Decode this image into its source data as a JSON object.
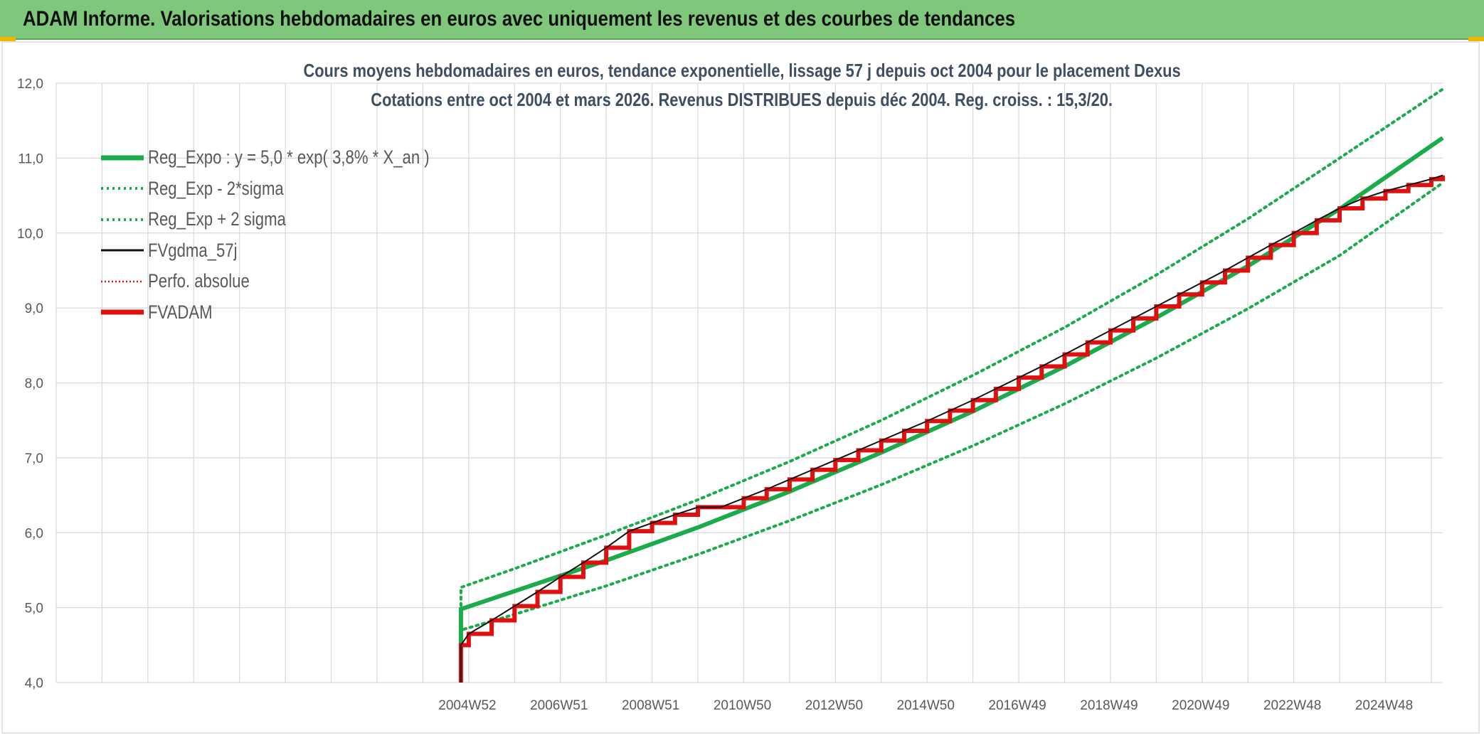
{
  "header": {
    "title": "ADAM Informe. Valorisations hebdomadaires en euros avec uniquement les revenus et des courbes de tendances"
  },
  "colors": {
    "banner": "#7fc77a",
    "trend": "#1aab4b",
    "red": "#e01010",
    "black": "#111111",
    "grid": "#d9d9d9"
  },
  "chart_data": {
    "type": "line",
    "title": "Cours moyens hebdomadaires en euros, tendance exponentielle, lissage 57 j depuis oct 2004 pour le placement Dexus",
    "subtitle": "Cotations entre oct 2004 et mars 2026. Revenus DISTRIBUES depuis déc 2004. Reg. croiss. : 15,3/20.",
    "ylim": [
      4,
      12
    ],
    "y_ticks": [
      "4,0",
      "5,0",
      "6,0",
      "7,0",
      "8,0",
      "9,0",
      "10,0",
      "11,0",
      "12,0"
    ],
    "x_tick_labels": [
      "2004W52",
      "2006W51",
      "2008W51",
      "2010W50",
      "2012W50",
      "2014W50",
      "2016W49",
      "2018W49",
      "2020W49",
      "2022W48",
      "2024W48"
    ],
    "x_range_years": [
      1996.0,
      2026.25
    ],
    "grid": true,
    "legend_position": "top-left",
    "legend": [
      {
        "name": "Reg_Expo : y = 5,0 * exp( 3,8% *  X_an )",
        "color": "#1aab4b",
        "style": "solid-thick"
      },
      {
        "name": "Reg_Exp - 2*sigma",
        "color": "#1aab4b",
        "style": "dotted"
      },
      {
        "name": "Reg_Exp + 2 sigma",
        "color": "#1aab4b",
        "style": "dotted"
      },
      {
        "name": "FVgdma_57j",
        "color": "#111111",
        "style": "solid"
      },
      {
        "name": "Perfo. absolue",
        "color": "#e01010",
        "style": "dotted"
      },
      {
        "name": "FVADAM",
        "color": "#e01010",
        "style": "solid-thick"
      }
    ],
    "series": [
      {
        "name": "Reg_Expo : y = 5,0 * exp( 3,8% *  X_an )",
        "x": [
          2004.83,
          2004.83,
          2006,
          2008,
          2010,
          2012,
          2014,
          2016,
          2018,
          2020,
          2022,
          2024,
          2026.25
        ],
        "y": [
          4.5,
          4.98,
          5.22,
          5.63,
          6.07,
          6.55,
          7.07,
          7.62,
          8.22,
          8.87,
          9.56,
          10.32,
          11.27
        ]
      },
      {
        "name": "Reg_Exp - 2*sigma",
        "x": [
          2004.83,
          2004.83,
          2006,
          2008,
          2010,
          2012,
          2014,
          2016,
          2018,
          2020,
          2022,
          2024,
          2026.25
        ],
        "y": [
          4.4,
          4.7,
          4.91,
          5.29,
          5.71,
          6.16,
          6.64,
          7.16,
          7.72,
          8.33,
          8.99,
          9.7,
          10.67
        ]
      },
      {
        "name": "Reg_Exp + 2 sigma",
        "x": [
          2004.83,
          2004.83,
          2006,
          2008,
          2010,
          2012,
          2014,
          2016,
          2018,
          2020,
          2022,
          2024,
          2026.25
        ],
        "y": [
          4.6,
          5.27,
          5.52,
          5.97,
          6.44,
          6.95,
          7.5,
          8.1,
          8.74,
          9.44,
          10.19,
          11.0,
          11.92
        ]
      },
      {
        "name": "FVADAM",
        "x": [
          2004.83,
          2004.83,
          2005.0,
          2005.5,
          2006.0,
          2006.5,
          2007.0,
          2007.5,
          2008.0,
          2008.5,
          2009.0,
          2009.5,
          2010.0,
          2010.5,
          2011.0,
          2011.5,
          2012.0,
          2012.5,
          2013.0,
          2013.5,
          2014.0,
          2014.5,
          2015.0,
          2015.5,
          2016.0,
          2016.5,
          2017.0,
          2017.5,
          2018.0,
          2018.5,
          2019.0,
          2019.5,
          2020.0,
          2020.5,
          2021.0,
          2021.5,
          2022.0,
          2022.5,
          2023.0,
          2023.5,
          2024.0,
          2024.5,
          2025.0,
          2025.5,
          2026.0,
          2026.25
        ],
        "y": [
          4.0,
          4.5,
          4.65,
          4.83,
          5.02,
          5.21,
          5.41,
          5.6,
          5.8,
          6.02,
          6.13,
          6.24,
          6.34,
          6.34,
          6.46,
          6.58,
          6.71,
          6.84,
          6.97,
          7.1,
          7.23,
          7.36,
          7.49,
          7.63,
          7.77,
          7.92,
          8.07,
          8.22,
          8.38,
          8.54,
          8.7,
          8.86,
          9.02,
          9.18,
          9.34,
          9.5,
          9.67,
          9.84,
          10.0,
          10.17,
          10.33,
          10.46,
          10.56,
          10.64,
          10.72,
          10.77
        ]
      }
    ]
  }
}
